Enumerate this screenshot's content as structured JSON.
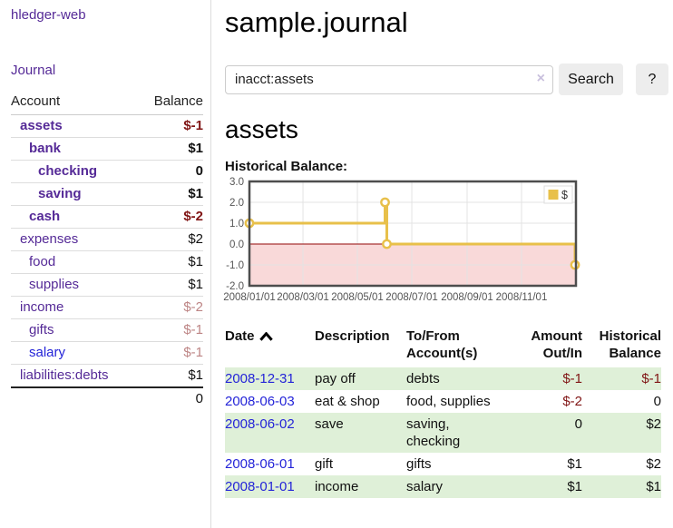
{
  "app": {
    "brand": "hledger-web",
    "nav_journal": "Journal"
  },
  "sidebar": {
    "account_header": "Account",
    "balance_header": "Balance",
    "rows": [
      {
        "name": "assets",
        "balance": "$-1",
        "depth": 1,
        "bold": true,
        "balance_style": "neg"
      },
      {
        "name": "bank",
        "balance": "$1",
        "depth": 2,
        "bold": true,
        "balance_style": ""
      },
      {
        "name": "checking",
        "balance": "0",
        "depth": 3,
        "bold": true,
        "balance_style": ""
      },
      {
        "name": "saving",
        "balance": "$1",
        "depth": 3,
        "bold": true,
        "balance_style": ""
      },
      {
        "name": "cash",
        "balance": "$-2",
        "depth": 2,
        "bold": true,
        "balance_style": "neg"
      },
      {
        "name": "expenses",
        "balance": "$2",
        "depth": 1,
        "bold": false,
        "balance_style": ""
      },
      {
        "name": "food",
        "balance": "$1",
        "depth": 2,
        "bold": false,
        "balance_style": ""
      },
      {
        "name": "supplies",
        "balance": "$1",
        "depth": 2,
        "bold": false,
        "balance_style": ""
      },
      {
        "name": "income",
        "balance": "$-2",
        "depth": 1,
        "bold": false,
        "balance_style": "faded"
      },
      {
        "name": "gifts",
        "balance": "$-1",
        "depth": 2,
        "bold": false,
        "balance_style": "faded"
      },
      {
        "name": "salary",
        "balance": "$-1",
        "depth": 2,
        "bold": false,
        "balance_style": "faded",
        "name_style": "blue"
      },
      {
        "name": "liabilities:debts",
        "balance": "$1",
        "depth": 1,
        "bold": false,
        "balance_style": ""
      }
    ],
    "total": "0"
  },
  "header": {
    "title": "sample.journal"
  },
  "search": {
    "value": "inacct:assets",
    "clear_label": "×",
    "button_label": "Search",
    "help_label": "?"
  },
  "account_page": {
    "heading": "assets",
    "chart_label": "Historical Balance:"
  },
  "chart_data": {
    "type": "line",
    "step": true,
    "title": "Historical Balance",
    "series": [
      {
        "name": "$",
        "color": "#e8c04a",
        "points": [
          [
            "2008-01-01",
            1
          ],
          [
            "2008-06-01",
            2
          ],
          [
            "2008-06-03",
            0
          ],
          [
            "2008-12-31",
            -1
          ]
        ]
      }
    ],
    "xlim": [
      "2008-01-01",
      "2009-01-01"
    ],
    "ylim": [
      -2,
      3
    ],
    "y_ticks": [
      3,
      2,
      1,
      0,
      -1,
      -2
    ],
    "y_tick_labels": [
      "3.0",
      "2.0",
      "1.0",
      "0.0",
      "-1.0",
      "-2.0"
    ],
    "x_ticks": [
      "2008-01-01",
      "2008-03-01",
      "2008-05-01",
      "2008-07-01",
      "2008-09-01",
      "2008-11-01"
    ],
    "x_tick_labels": [
      "2008/01/01",
      "2008/03/01",
      "2008/05/01",
      "2008/07/01",
      "2008/09/01",
      "2008/11/01"
    ],
    "grid": true,
    "negative_region_fill": "#f9d9d9",
    "zero_line_color": "#a93434",
    "legend": {
      "label": "$",
      "position": "top-right"
    }
  },
  "register": {
    "headers": {
      "date": "Date",
      "description": "Description",
      "tofrom": "To/From Account(s)",
      "amount": "Amount Out/In",
      "balance": "Historical Balance"
    },
    "rows": [
      {
        "date": "2008-12-31",
        "description": "pay off",
        "tofrom": "debts",
        "amount": "$-1",
        "amount_neg": true,
        "balance": "$-1",
        "balance_neg": true
      },
      {
        "date": "2008-06-03",
        "description": "eat & shop",
        "tofrom": "food, supplies",
        "amount": "$-2",
        "amount_neg": true,
        "balance": "0",
        "balance_neg": false
      },
      {
        "date": "2008-06-02",
        "description": "save",
        "tofrom": "saving,\nchecking",
        "amount": "0",
        "amount_neg": false,
        "balance": "$2",
        "balance_neg": false
      },
      {
        "date": "2008-06-01",
        "description": "gift",
        "tofrom": "gifts",
        "amount": "$1",
        "amount_neg": false,
        "balance": "$2",
        "balance_neg": false
      },
      {
        "date": "2008-01-01",
        "description": "income",
        "tofrom": "salary",
        "amount": "$1",
        "amount_neg": false,
        "balance": "$1",
        "balance_neg": false
      }
    ]
  }
}
